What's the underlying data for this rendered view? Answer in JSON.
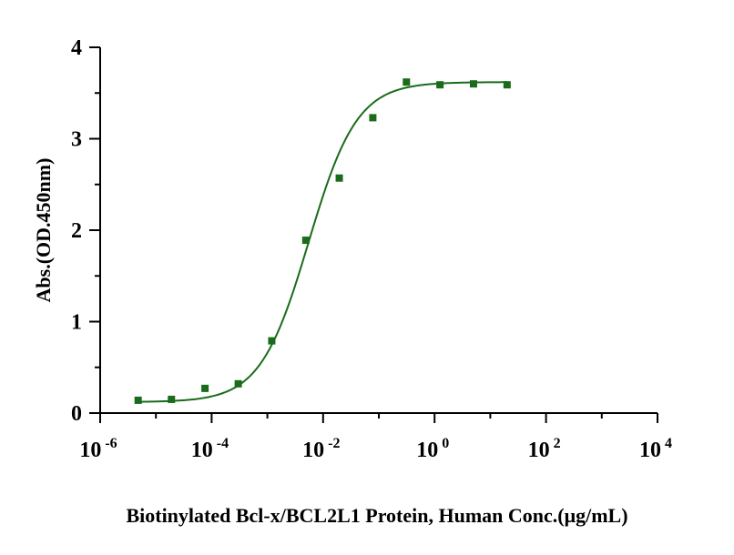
{
  "chart_data": {
    "type": "scatter",
    "title": "",
    "xlabel": "Biotinylated Bcl-x/BCL2L1 Protein, Human Conc.(μg/mL)",
    "ylabel": "Abs.(OD.450nm)",
    "x_scale": "log",
    "xlim": [
      1e-06,
      10000
    ],
    "ylim": [
      0,
      4
    ],
    "x_ticks": [
      {
        "base": "10",
        "exp": "-6"
      },
      {
        "base": "10",
        "exp": "-4"
      },
      {
        "base": "10",
        "exp": "-2"
      },
      {
        "base": "10",
        "exp": "0"
      },
      {
        "base": "10",
        "exp": "2"
      },
      {
        "base": "10",
        "exp": "4"
      }
    ],
    "y_ticks": [
      "0",
      "1",
      "2",
      "3",
      "4"
    ],
    "grid": false,
    "series": [
      {
        "color": "#1a6b1a",
        "marker": "square",
        "points": [
          {
            "x": 4.8e-06,
            "y": 0.14
          },
          {
            "x": 1.9e-05,
            "y": 0.15
          },
          {
            "x": 7.6e-05,
            "y": 0.27
          },
          {
            "x": 0.0003,
            "y": 0.32
          },
          {
            "x": 0.0012,
            "y": 0.79
          },
          {
            "x": 0.0049,
            "y": 1.89
          },
          {
            "x": 0.0195,
            "y": 2.57
          },
          {
            "x": 0.078,
            "y": 3.23
          },
          {
            "x": 0.3125,
            "y": 3.62
          },
          {
            "x": 1.25,
            "y": 3.59
          },
          {
            "x": 5,
            "y": 3.6
          },
          {
            "x": 20,
            "y": 3.59
          }
        ]
      }
    ],
    "fit_curve": {
      "model": "4PL",
      "bottom": 0.12,
      "top": 3.62,
      "ec50": 0.0055,
      "hill": 1.0,
      "x_range": [
        4.8e-06,
        20
      ],
      "color": "#1a6b1a"
    }
  }
}
